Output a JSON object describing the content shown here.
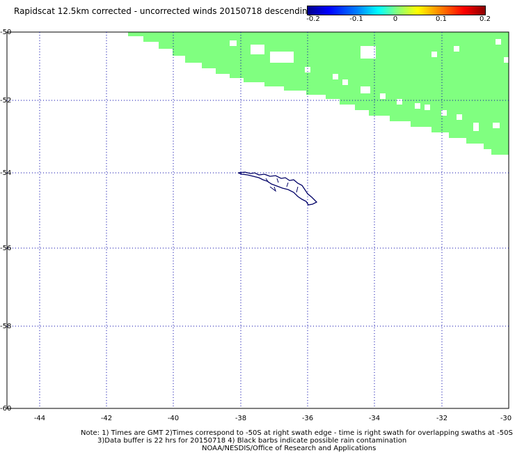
{
  "title": "Rapidscat 12.5km corrected - uncorrected winds 20150718 descending",
  "colorbar": {
    "tick_labels": [
      "-0.2",
      "-0.1",
      "0",
      "0.1",
      "0.2"
    ],
    "range": [
      -0.2,
      0.2
    ],
    "colors": [
      "#00008b",
      "#0000ff",
      "#00ffff",
      "#80ff80",
      "#ffff00",
      "#ff8000",
      "#ff0000",
      "#8b0000"
    ]
  },
  "map": {
    "lon_range": [
      -45,
      -30
    ],
    "lat_range": [
      -60,
      -50
    ],
    "lon_ticks": [
      "-44",
      "-42",
      "-40",
      "-38",
      "-36",
      "-34",
      "-32",
      "-30"
    ],
    "lat_ticks": [
      "-50",
      "-52",
      "-54",
      "-56",
      "-58",
      "-60"
    ],
    "grid": true,
    "swath_color": "#80ff80",
    "coast_color": "#000066",
    "grid_color": "#0000aa"
  },
  "notes": [
    "Note: 1) Times are GMT 2)Times correspond to -50S at right swath edge - time is right swath for overlapping swaths at -50S",
    "3)Data buffer is 22 hrs for 20150718 4) Black barbs indicate possible rain contamination",
    "NOAA/NESDIS/Office of Research and Applications"
  ]
}
